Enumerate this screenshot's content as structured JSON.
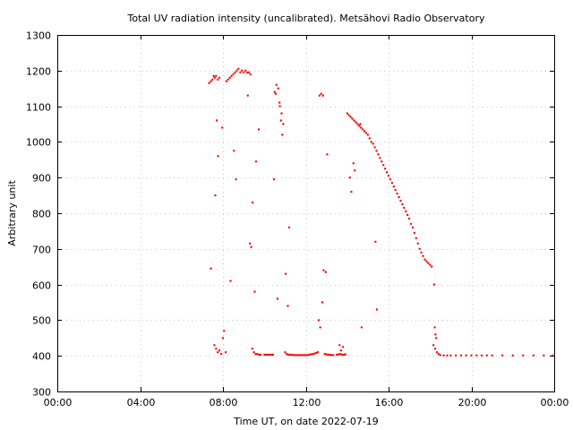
{
  "chart_data": {
    "type": "scatter",
    "title": "Total UV radiation intensity (uncalibrated). Metsähovi Radio Observatory",
    "xlabel": "Time UT, on date 2022-07-19",
    "ylabel": "Arbitrary unit",
    "xlim": [
      "00:00",
      "24:00"
    ],
    "ylim": [
      300,
      1300
    ],
    "x_tick_labels": [
      "00:00",
      "04:00",
      "08:00",
      "12:00",
      "16:00",
      "20:00",
      "00:00"
    ],
    "y_tick_labels": [
      "300",
      "400",
      "500",
      "600",
      "700",
      "800",
      "900",
      "1000",
      "1100",
      "1200",
      "1300"
    ],
    "grid": true,
    "legend": "none",
    "colors": {
      "points": "#ff0000",
      "grid": "#c8c8c8",
      "frame": "#000000"
    },
    "series": [
      {
        "x": [
          "07:20",
          "07:25",
          "07:30",
          "07:33",
          "07:36",
          "07:40",
          "07:45",
          "07:50",
          "07:35",
          "07:40",
          "07:45",
          "07:50",
          "07:55",
          "08:00",
          "08:03",
          "08:10",
          "08:15",
          "08:20",
          "08:25",
          "08:30",
          "08:35",
          "08:40",
          "08:45",
          "08:50",
          "08:55",
          "09:00",
          "09:05",
          "09:10",
          "09:15",
          "09:20",
          "09:25",
          "09:30",
          "09:35",
          "09:40",
          "09:45",
          "09:50",
          "10:00",
          "10:05",
          "10:10",
          "10:15",
          "10:20",
          "10:25",
          "10:30",
          "10:35",
          "10:40",
          "10:45",
          "10:50",
          "10:55",
          "11:00",
          "11:05",
          "11:10",
          "11:15",
          "11:20",
          "11:25",
          "11:30",
          "11:35",
          "11:40",
          "11:45",
          "11:50",
          "11:55",
          "12:00",
          "12:05",
          "12:10",
          "12:15",
          "12:20",
          "12:25",
          "12:30",
          "12:35",
          "12:40",
          "12:45",
          "12:50",
          "12:55",
          "13:00",
          "13:05",
          "13:10",
          "13:15",
          "13:20",
          "13:30",
          "13:35",
          "13:40",
          "13:45",
          "13:50",
          "13:55",
          "14:00",
          "14:05",
          "14:10",
          "14:15",
          "14:20",
          "14:25",
          "14:30",
          "14:35",
          "14:40",
          "14:45",
          "14:50",
          "14:55",
          "15:00",
          "15:05",
          "15:10",
          "15:15",
          "15:20",
          "15:25",
          "15:30",
          "15:35",
          "15:40",
          "15:45",
          "15:50",
          "15:55",
          "16:00",
          "16:05",
          "16:10",
          "16:15",
          "16:20",
          "16:25",
          "16:30",
          "16:35",
          "16:40",
          "16:45",
          "16:50",
          "16:55",
          "17:00",
          "17:05",
          "17:10",
          "17:15",
          "17:20",
          "17:25",
          "17:30",
          "17:35",
          "17:40",
          "17:45",
          "17:50",
          "17:55",
          "18:00",
          "18:05",
          "18:10",
          "18:15",
          "18:20",
          "18:25",
          "18:30",
          "18:40",
          "18:50",
          "19:00",
          "19:15",
          "19:30",
          "19:45",
          "20:00",
          "20:15",
          "20:30",
          "20:45",
          "21:00",
          "21:30",
          "22:00",
          "22:30",
          "23:00",
          "23:30",
          "23:55",
          "07:25",
          "07:38",
          "07:42",
          "07:46",
          "07:58",
          "08:08",
          "08:22",
          "08:32",
          "08:38",
          "09:12",
          "09:18",
          "09:22",
          "09:26",
          "09:32",
          "09:36",
          "09:44",
          "10:28",
          "10:33",
          "10:38",
          "10:44",
          "10:48",
          "10:52",
          "11:02",
          "11:08",
          "11:12",
          "12:38",
          "12:42",
          "12:48",
          "12:52",
          "12:58",
          "13:02",
          "13:38",
          "13:42",
          "13:48",
          "14:08",
          "14:12",
          "14:18",
          "14:22",
          "14:38",
          "14:42",
          "15:22",
          "15:26",
          "18:12",
          "18:14",
          "18:16",
          "18:18"
        ],
        "y": [
          1165,
          1170,
          1175,
          1185,
          1180,
          1185,
          1175,
          1180,
          430,
          420,
          410,
          415,
          405,
          450,
          470,
          1170,
          1175,
          1180,
          1185,
          1190,
          1195,
          1200,
          1205,
          1195,
          1200,
          1195,
          1200,
          1195,
          1195,
          1190,
          420,
          410,
          405,
          405,
          403,
          403,
          403,
          403,
          403,
          403,
          403,
          403,
          1140,
          1160,
          1150,
          1100,
          1080,
          1050,
          410,
          405,
          403,
          403,
          403,
          402,
          402,
          402,
          402,
          402,
          402,
          402,
          402,
          402,
          403,
          404,
          405,
          406,
          408,
          410,
          1130,
          1135,
          1130,
          405,
          404,
          403,
          403,
          402,
          402,
          403,
          404,
          405,
          403,
          403,
          404,
          1080,
          1075,
          1070,
          1065,
          1060,
          1055,
          1050,
          1045,
          1040,
          1035,
          1030,
          1025,
          1020,
          1010,
          1000,
          995,
          985,
          975,
          965,
          955,
          945,
          935,
          925,
          915,
          905,
          895,
          885,
          875,
          865,
          855,
          845,
          835,
          825,
          815,
          805,
          795,
          785,
          770,
          760,
          745,
          730,
          715,
          700,
          690,
          680,
          670,
          665,
          660,
          655,
          650,
          430,
          420,
          410,
          405,
          402,
          401,
          401,
          401,
          401,
          401,
          401,
          401,
          401,
          401,
          401,
          401,
          401,
          401,
          401,
          401,
          401,
          401,
          645,
          850,
          1060,
          960,
          1040,
          410,
          610,
          975,
          895,
          1130,
          715,
          705,
          830,
          580,
          945,
          1035,
          895,
          1135,
          560,
          1110,
          1060,
          1020,
          630,
          540,
          760,
          500,
          480,
          550,
          640,
          635,
          965,
          430,
          415,
          425,
          900,
          860,
          940,
          920,
          1050,
          480,
          720,
          530,
          600,
          480,
          460,
          450
        ]
      }
    ]
  }
}
